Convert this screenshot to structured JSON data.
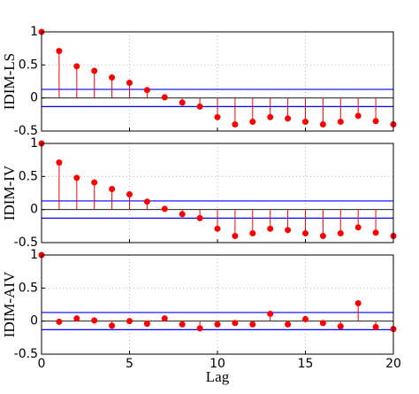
{
  "chart_data": [
    {
      "type": "stem",
      "ylabel": "IDIM-LS",
      "x": [
        0,
        1,
        2,
        3,
        4,
        5,
        6,
        7,
        8,
        9,
        10,
        11,
        12,
        13,
        14,
        15,
        16,
        17,
        18,
        19,
        20
      ],
      "values": [
        1,
        0.71,
        0.48,
        0.41,
        0.31,
        0.23,
        0.12,
        0.01,
        -0.07,
        -0.13,
        -0.29,
        -0.4,
        -0.36,
        -0.29,
        -0.31,
        -0.36,
        -0.4,
        -0.36,
        -0.27,
        -0.35,
        -0.4
      ],
      "color": "#ff0000",
      "hlines": [
        0.13,
        -0.13
      ],
      "hline_color": "#0000ff",
      "xlim": [
        0,
        20
      ],
      "ylim": [
        -0.5,
        1
      ],
      "xticks": [
        0,
        5,
        10,
        15,
        20
      ],
      "yticks": [
        -0.5,
        0,
        0.5,
        1
      ],
      "grid": true
    },
    {
      "type": "stem",
      "ylabel": "IDIM-IV",
      "x": [
        0,
        1,
        2,
        3,
        4,
        5,
        6,
        7,
        8,
        9,
        10,
        11,
        12,
        13,
        14,
        15,
        16,
        17,
        18,
        19,
        20
      ],
      "values": [
        1,
        0.71,
        0.48,
        0.41,
        0.31,
        0.23,
        0.12,
        0.01,
        -0.07,
        -0.13,
        -0.29,
        -0.4,
        -0.36,
        -0.29,
        -0.31,
        -0.36,
        -0.4,
        -0.36,
        -0.27,
        -0.35,
        -0.4
      ],
      "color": "#ff0000",
      "hlines": [
        0.13,
        -0.13
      ],
      "hline_color": "#0000ff",
      "xlim": [
        0,
        20
      ],
      "ylim": [
        -0.5,
        1
      ],
      "xticks": [
        0,
        5,
        10,
        15,
        20
      ],
      "yticks": [
        -0.5,
        0,
        0.5,
        1
      ],
      "grid": true
    },
    {
      "type": "stem",
      "ylabel": "IDIM-AIV",
      "xlabel": "Lag",
      "x": [
        0,
        1,
        2,
        3,
        4,
        5,
        6,
        7,
        8,
        9,
        10,
        11,
        12,
        13,
        14,
        15,
        16,
        17,
        18,
        19,
        20
      ],
      "values": [
        1,
        -0.01,
        0.04,
        0.01,
        -0.07,
        0,
        -0.04,
        0.04,
        -0.05,
        -0.11,
        -0.05,
        -0.03,
        -0.05,
        0.11,
        -0.05,
        0.03,
        -0.03,
        -0.08,
        0.27,
        -0.09,
        -0.12
      ],
      "color": "#ff0000",
      "hlines": [
        0.13,
        -0.13
      ],
      "hline_color": "#0000ff",
      "xlim": [
        0,
        20
      ],
      "ylim": [
        -0.5,
        1
      ],
      "xticks": [
        0,
        5,
        10,
        15,
        20
      ],
      "yticks": [
        -0.5,
        0,
        0.5,
        1
      ],
      "grid": true
    }
  ]
}
